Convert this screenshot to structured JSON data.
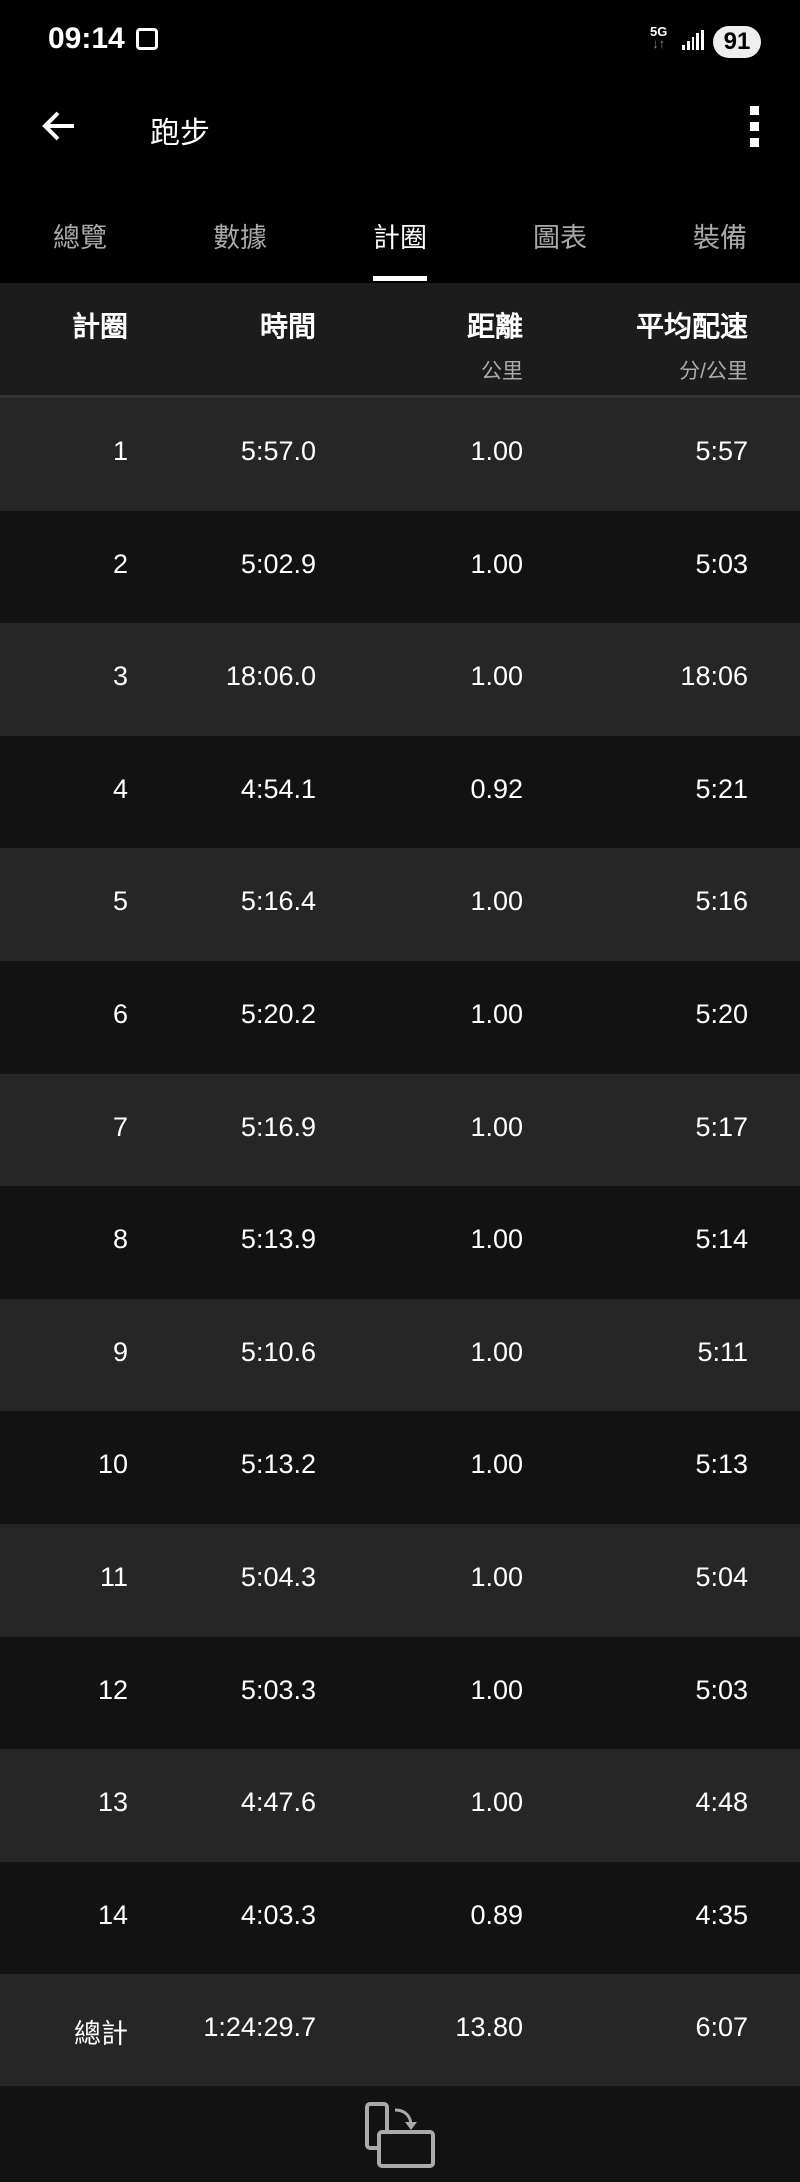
{
  "status_bar": {
    "time": "09:14",
    "network": "5G",
    "battery": "91"
  },
  "app_bar": {
    "title": "跑步"
  },
  "tabs": [
    {
      "label": "總覽"
    },
    {
      "label": "數據"
    },
    {
      "label": "計圈",
      "active": true
    },
    {
      "label": "圖表"
    },
    {
      "label": "裝備"
    }
  ],
  "table": {
    "headers": [
      {
        "label": "計圈",
        "unit": ""
      },
      {
        "label": "時間",
        "unit": ""
      },
      {
        "label": "距離",
        "unit": "公里"
      },
      {
        "label": "平均配速",
        "unit": "分/公里"
      }
    ],
    "rows": [
      [
        "1",
        "5:57.0",
        "1.00",
        "5:57"
      ],
      [
        "2",
        "5:02.9",
        "1.00",
        "5:03"
      ],
      [
        "3",
        "18:06.0",
        "1.00",
        "18:06"
      ],
      [
        "4",
        "4:54.1",
        "0.92",
        "5:21"
      ],
      [
        "5",
        "5:16.4",
        "1.00",
        "5:16"
      ],
      [
        "6",
        "5:20.2",
        "1.00",
        "5:20"
      ],
      [
        "7",
        "5:16.9",
        "1.00",
        "5:17"
      ],
      [
        "8",
        "5:13.9",
        "1.00",
        "5:14"
      ],
      [
        "9",
        "5:10.6",
        "1.00",
        "5:11"
      ],
      [
        "10",
        "5:13.2",
        "1.00",
        "5:13"
      ],
      [
        "11",
        "5:04.3",
        "1.00",
        "5:04"
      ],
      [
        "12",
        "5:03.3",
        "1.00",
        "5:03"
      ],
      [
        "13",
        "4:47.6",
        "1.00",
        "4:48"
      ],
      [
        "14",
        "4:03.3",
        "0.89",
        "4:35"
      ],
      [
        "總計",
        "1:24:29.7",
        "13.80",
        "6:07"
      ]
    ]
  },
  "icons": {
    "back": "arrow-left-icon",
    "more": "more-vert-icon",
    "rotate": "screen-rotate-icon"
  }
}
